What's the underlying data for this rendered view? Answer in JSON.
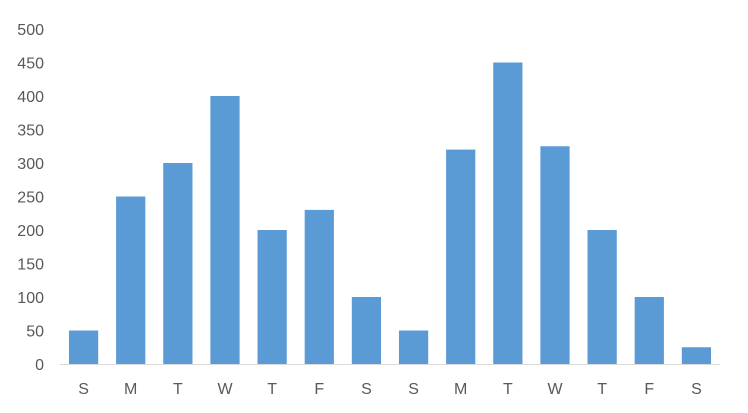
{
  "chart_data": {
    "type": "bar",
    "categories": [
      "S",
      "M",
      "T",
      "W",
      "T",
      "F",
      "S",
      "S",
      "M",
      "T",
      "W",
      "T",
      "F",
      "S"
    ],
    "series": [
      {
        "values": [
          50,
          250,
          300,
          400,
          200,
          230,
          100,
          50,
          320,
          450,
          325,
          200,
          100,
          25
        ]
      }
    ],
    "ylim": [
      0,
      500
    ],
    "yticks": [
      0,
      50,
      100,
      150,
      200,
      250,
      300,
      350,
      400,
      450,
      500
    ],
    "grid": false,
    "legend": "none",
    "colors": {
      "bar": "#5b9bd5",
      "axis": "#d9d9d9",
      "text": "#595959"
    }
  }
}
